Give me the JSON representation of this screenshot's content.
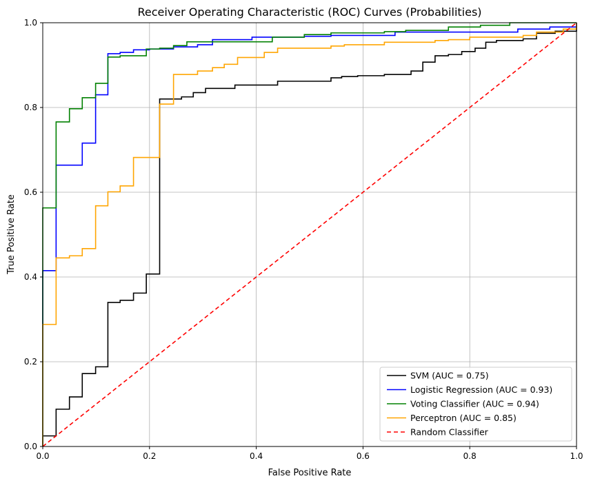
{
  "chart_data": {
    "type": "line",
    "title": "Receiver Operating Characteristic (ROC) Curves (Probabilities)",
    "xlabel": "False Positive Rate",
    "ylabel": "True Positive Rate",
    "xlim": [
      0,
      1
    ],
    "ylim": [
      0,
      1
    ],
    "xticks": [
      "0.0",
      "0.2",
      "0.4",
      "0.6",
      "0.8",
      "1.0"
    ],
    "yticks": [
      "0.0",
      "0.2",
      "0.4",
      "0.6",
      "0.8",
      "1.0"
    ],
    "grid": true,
    "legend_position": "lower-right",
    "series": [
      {
        "name": "SVM (AUC = 0.75)",
        "color": "#000000",
        "dash": false,
        "points": [
          [
            0,
            0
          ],
          [
            0,
            0.025
          ],
          [
            0.025,
            0.025
          ],
          [
            0.025,
            0.088
          ],
          [
            0.05,
            0.088
          ],
          [
            0.05,
            0.117
          ],
          [
            0.074,
            0.117
          ],
          [
            0.074,
            0.172
          ],
          [
            0.099,
            0.172
          ],
          [
            0.099,
            0.188
          ],
          [
            0.122,
            0.188
          ],
          [
            0.122,
            0.34
          ],
          [
            0.145,
            0.34
          ],
          [
            0.145,
            0.345
          ],
          [
            0.17,
            0.345
          ],
          [
            0.17,
            0.362
          ],
          [
            0.194,
            0.362
          ],
          [
            0.194,
            0.407
          ],
          [
            0.219,
            0.407
          ],
          [
            0.219,
            0.82
          ],
          [
            0.26,
            0.82
          ],
          [
            0.26,
            0.825
          ],
          [
            0.282,
            0.825
          ],
          [
            0.282,
            0.835
          ],
          [
            0.305,
            0.835
          ],
          [
            0.305,
            0.845
          ],
          [
            0.36,
            0.845
          ],
          [
            0.36,
            0.853
          ],
          [
            0.44,
            0.853
          ],
          [
            0.44,
            0.862
          ],
          [
            0.54,
            0.862
          ],
          [
            0.54,
            0.87
          ],
          [
            0.56,
            0.87
          ],
          [
            0.56,
            0.873
          ],
          [
            0.59,
            0.873
          ],
          [
            0.59,
            0.875
          ],
          [
            0.64,
            0.875
          ],
          [
            0.64,
            0.878
          ],
          [
            0.69,
            0.878
          ],
          [
            0.69,
            0.886
          ],
          [
            0.712,
            0.886
          ],
          [
            0.712,
            0.907
          ],
          [
            0.735,
            0.907
          ],
          [
            0.735,
            0.922
          ],
          [
            0.76,
            0.922
          ],
          [
            0.76,
            0.925
          ],
          [
            0.785,
            0.925
          ],
          [
            0.785,
            0.932
          ],
          [
            0.81,
            0.932
          ],
          [
            0.81,
            0.94
          ],
          [
            0.83,
            0.94
          ],
          [
            0.83,
            0.954
          ],
          [
            0.85,
            0.954
          ],
          [
            0.85,
            0.958
          ],
          [
            0.9,
            0.958
          ],
          [
            0.9,
            0.962
          ],
          [
            0.925,
            0.962
          ],
          [
            0.925,
            0.975
          ],
          [
            0.96,
            0.975
          ],
          [
            0.96,
            0.98
          ],
          [
            1,
            0.98
          ],
          [
            1,
            1
          ]
        ]
      },
      {
        "name": "Logistic Regression (AUC = 0.93)",
        "color": "#0000ff",
        "dash": false,
        "points": [
          [
            0,
            0
          ],
          [
            0,
            0.415
          ],
          [
            0.025,
            0.415
          ],
          [
            0.025,
            0.664
          ],
          [
            0.074,
            0.664
          ],
          [
            0.074,
            0.716
          ],
          [
            0.099,
            0.716
          ],
          [
            0.099,
            0.83
          ],
          [
            0.122,
            0.83
          ],
          [
            0.122,
            0.927
          ],
          [
            0.145,
            0.927
          ],
          [
            0.145,
            0.93
          ],
          [
            0.17,
            0.93
          ],
          [
            0.17,
            0.936
          ],
          [
            0.2,
            0.936
          ],
          [
            0.2,
            0.938
          ],
          [
            0.245,
            0.938
          ],
          [
            0.245,
            0.943
          ],
          [
            0.29,
            0.943
          ],
          [
            0.29,
            0.948
          ],
          [
            0.318,
            0.948
          ],
          [
            0.318,
            0.96
          ],
          [
            0.392,
            0.96
          ],
          [
            0.392,
            0.966
          ],
          [
            0.49,
            0.966
          ],
          [
            0.49,
            0.968
          ],
          [
            0.54,
            0.968
          ],
          [
            0.54,
            0.97
          ],
          [
            0.66,
            0.97
          ],
          [
            0.66,
            0.978
          ],
          [
            0.89,
            0.978
          ],
          [
            0.89,
            0.985
          ],
          [
            0.95,
            0.985
          ],
          [
            0.95,
            0.99
          ],
          [
            1,
            0.99
          ],
          [
            1,
            1
          ]
        ]
      },
      {
        "name": "Voting Classifier (AUC = 0.94)",
        "color": "#008000",
        "dash": false,
        "points": [
          [
            0,
            0
          ],
          [
            0,
            0.563
          ],
          [
            0.025,
            0.563
          ],
          [
            0.025,
            0.766
          ],
          [
            0.05,
            0.766
          ],
          [
            0.05,
            0.797
          ],
          [
            0.074,
            0.797
          ],
          [
            0.074,
            0.823
          ],
          [
            0.099,
            0.823
          ],
          [
            0.099,
            0.857
          ],
          [
            0.122,
            0.857
          ],
          [
            0.122,
            0.919
          ],
          [
            0.145,
            0.919
          ],
          [
            0.145,
            0.922
          ],
          [
            0.194,
            0.922
          ],
          [
            0.194,
            0.938
          ],
          [
            0.219,
            0.938
          ],
          [
            0.219,
            0.94
          ],
          [
            0.245,
            0.94
          ],
          [
            0.245,
            0.946
          ],
          [
            0.27,
            0.946
          ],
          [
            0.27,
            0.955
          ],
          [
            0.43,
            0.955
          ],
          [
            0.43,
            0.966
          ],
          [
            0.49,
            0.966
          ],
          [
            0.49,
            0.972
          ],
          [
            0.54,
            0.972
          ],
          [
            0.54,
            0.976
          ],
          [
            0.64,
            0.976
          ],
          [
            0.64,
            0.979
          ],
          [
            0.68,
            0.979
          ],
          [
            0.68,
            0.982
          ],
          [
            0.76,
            0.982
          ],
          [
            0.76,
            0.99
          ],
          [
            0.82,
            0.99
          ],
          [
            0.82,
            0.994
          ],
          [
            0.875,
            0.994
          ],
          [
            0.875,
            1
          ],
          [
            1,
            1
          ]
        ]
      },
      {
        "name": "Perceptron (AUC = 0.85)",
        "color": "#ffa500",
        "dash": false,
        "points": [
          [
            0,
            0
          ],
          [
            0,
            0.288
          ],
          [
            0.025,
            0.288
          ],
          [
            0.025,
            0.445
          ],
          [
            0.05,
            0.445
          ],
          [
            0.05,
            0.45
          ],
          [
            0.074,
            0.45
          ],
          [
            0.074,
            0.467
          ],
          [
            0.099,
            0.467
          ],
          [
            0.099,
            0.568
          ],
          [
            0.122,
            0.568
          ],
          [
            0.122,
            0.601
          ],
          [
            0.145,
            0.601
          ],
          [
            0.145,
            0.615
          ],
          [
            0.17,
            0.615
          ],
          [
            0.17,
            0.682
          ],
          [
            0.219,
            0.682
          ],
          [
            0.219,
            0.808
          ],
          [
            0.245,
            0.808
          ],
          [
            0.245,
            0.878
          ],
          [
            0.29,
            0.878
          ],
          [
            0.29,
            0.886
          ],
          [
            0.318,
            0.886
          ],
          [
            0.318,
            0.894
          ],
          [
            0.34,
            0.894
          ],
          [
            0.34,
            0.902
          ],
          [
            0.365,
            0.902
          ],
          [
            0.365,
            0.918
          ],
          [
            0.415,
            0.918
          ],
          [
            0.415,
            0.93
          ],
          [
            0.44,
            0.93
          ],
          [
            0.44,
            0.94
          ],
          [
            0.54,
            0.94
          ],
          [
            0.54,
            0.945
          ],
          [
            0.565,
            0.945
          ],
          [
            0.565,
            0.948
          ],
          [
            0.64,
            0.948
          ],
          [
            0.64,
            0.954
          ],
          [
            0.735,
            0.954
          ],
          [
            0.735,
            0.958
          ],
          [
            0.76,
            0.958
          ],
          [
            0.76,
            0.96
          ],
          [
            0.8,
            0.96
          ],
          [
            0.8,
            0.966
          ],
          [
            0.9,
            0.966
          ],
          [
            0.9,
            0.97
          ],
          [
            0.925,
            0.97
          ],
          [
            0.925,
            0.978
          ],
          [
            0.975,
            0.978
          ],
          [
            0.975,
            0.985
          ],
          [
            1,
            0.985
          ],
          [
            1,
            1
          ]
        ]
      },
      {
        "name": "Random Classifier",
        "color": "#ff0000",
        "dash": true,
        "points": [
          [
            0,
            0
          ],
          [
            1,
            1
          ]
        ]
      }
    ]
  }
}
